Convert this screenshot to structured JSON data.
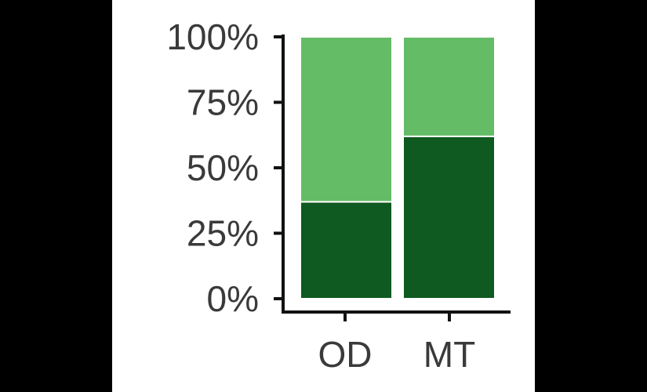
{
  "chart_data": {
    "type": "bar",
    "stacked": true,
    "categories": [
      "OD",
      "MT"
    ],
    "series": [
      {
        "values": [
          0.37,
          0.62
        ],
        "color": "#0e5a20"
      },
      {
        "values": [
          0.63,
          0.38
        ],
        "color": "#64bc66"
      }
    ],
    "ylim": [
      0,
      1
    ],
    "yticks": [
      {
        "value": 0,
        "label": "0%"
      },
      {
        "value": 0.25,
        "label": "25%"
      },
      {
        "value": 0.5,
        "label": "50%"
      },
      {
        "value": 0.75,
        "label": "75%"
      },
      {
        "value": 1,
        "label": "100%"
      }
    ],
    "grid": false,
    "legend": "none"
  },
  "colors": {
    "page_background": "#000000",
    "panel_background": "#ffffff",
    "axis": "#111111",
    "text": "#3a3a3a"
  }
}
